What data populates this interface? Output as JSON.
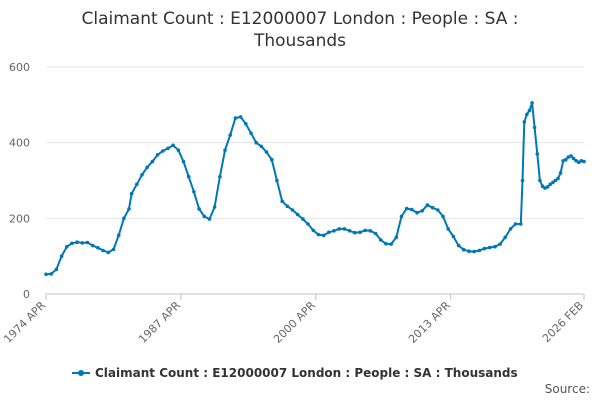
{
  "chart_data": {
    "type": "line",
    "title_line1": "Claimant Count : E12000007 London : People : SA :",
    "title_line2": "Thousands",
    "xlabel": "",
    "ylabel": "",
    "ylim": [
      0,
      600
    ],
    "y_ticks": [
      "0",
      "200",
      "400",
      "600"
    ],
    "x_range": [
      "1974 APR",
      "2026 FEB"
    ],
    "x_ticks": [
      "1974 APR",
      "1987 APR",
      "2000 APR",
      "2013 APR",
      "2026 FEB"
    ],
    "grid": "horizontal",
    "legend_position": "bottom",
    "series_color": "#0077b6",
    "series": [
      {
        "name": "Claimant Count : E12000007 London : People : SA : Thousands",
        "points": [
          [
            "1974-04",
            52
          ],
          [
            "1974-10",
            53
          ],
          [
            "1975-04",
            65
          ],
          [
            "1975-10",
            100
          ],
          [
            "1976-04",
            125
          ],
          [
            "1976-10",
            134
          ],
          [
            "1977-04",
            137
          ],
          [
            "1977-10",
            135
          ],
          [
            "1978-04",
            136
          ],
          [
            "1978-10",
            128
          ],
          [
            "1979-04",
            122
          ],
          [
            "1979-10",
            115
          ],
          [
            "1980-04",
            110
          ],
          [
            "1980-10",
            118
          ],
          [
            "1981-04",
            155
          ],
          [
            "1981-10",
            200
          ],
          [
            "1982-04",
            225
          ],
          [
            "1982-07",
            265
          ],
          [
            "1983-01",
            290
          ],
          [
            "1983-07",
            315
          ],
          [
            "1984-01",
            335
          ],
          [
            "1984-07",
            350
          ],
          [
            "1985-01",
            368
          ],
          [
            "1985-07",
            378
          ],
          [
            "1986-01",
            385
          ],
          [
            "1986-07",
            393
          ],
          [
            "1987-01",
            380
          ],
          [
            "1987-07",
            350
          ],
          [
            "1988-01",
            310
          ],
          [
            "1988-07",
            270
          ],
          [
            "1989-01",
            225
          ],
          [
            "1989-07",
            205
          ],
          [
            "1990-01",
            198
          ],
          [
            "1990-07",
            230
          ],
          [
            "1991-01",
            310
          ],
          [
            "1991-07",
            380
          ],
          [
            "1992-01",
            420
          ],
          [
            "1992-07",
            465
          ],
          [
            "1993-01",
            468
          ],
          [
            "1993-07",
            450
          ],
          [
            "1994-01",
            425
          ],
          [
            "1994-07",
            400
          ],
          [
            "1995-01",
            390
          ],
          [
            "1995-07",
            375
          ],
          [
            "1996-01",
            355
          ],
          [
            "1996-07",
            300
          ],
          [
            "1997-01",
            245
          ],
          [
            "1997-07",
            232
          ],
          [
            "1998-01",
            222
          ],
          [
            "1998-07",
            210
          ],
          [
            "1999-01",
            198
          ],
          [
            "1999-07",
            185
          ],
          [
            "2000-01",
            168
          ],
          [
            "2000-07",
            157
          ],
          [
            "2001-01",
            155
          ],
          [
            "2001-07",
            163
          ],
          [
            "2002-01",
            167
          ],
          [
            "2002-07",
            172
          ],
          [
            "2003-01",
            172
          ],
          [
            "2003-07",
            167
          ],
          [
            "2004-01",
            162
          ],
          [
            "2004-07",
            163
          ],
          [
            "2005-01",
            168
          ],
          [
            "2005-07",
            167
          ],
          [
            "2006-01",
            160
          ],
          [
            "2006-07",
            143
          ],
          [
            "2007-01",
            133
          ],
          [
            "2007-07",
            132
          ],
          [
            "2008-01",
            150
          ],
          [
            "2008-07",
            205
          ],
          [
            "2009-01",
            226
          ],
          [
            "2009-07",
            223
          ],
          [
            "2010-01",
            215
          ],
          [
            "2010-07",
            220
          ],
          [
            "2011-01",
            235
          ],
          [
            "2011-07",
            228
          ],
          [
            "2012-01",
            222
          ],
          [
            "2012-07",
            205
          ],
          [
            "2013-01",
            172
          ],
          [
            "2013-07",
            152
          ],
          [
            "2014-01",
            128
          ],
          [
            "2014-07",
            117
          ],
          [
            "2015-01",
            113
          ],
          [
            "2015-07",
            112
          ],
          [
            "2016-01",
            115
          ],
          [
            "2016-07",
            120
          ],
          [
            "2017-01",
            123
          ],
          [
            "2017-07",
            125
          ],
          [
            "2018-01",
            132
          ],
          [
            "2018-07",
            150
          ],
          [
            "2019-01",
            172
          ],
          [
            "2019-07",
            185
          ],
          [
            "2020-01",
            185
          ],
          [
            "2020-03",
            300
          ],
          [
            "2020-05",
            455
          ],
          [
            "2020-08",
            475
          ],
          [
            "2020-11",
            485
          ],
          [
            "2021-02",
            505
          ],
          [
            "2021-05",
            440
          ],
          [
            "2021-08",
            370
          ],
          [
            "2021-11",
            300
          ],
          [
            "2022-02",
            285
          ],
          [
            "2022-05",
            280
          ],
          [
            "2022-08",
            283
          ],
          [
            "2022-11",
            290
          ],
          [
            "2023-02",
            295
          ],
          [
            "2023-05",
            300
          ],
          [
            "2023-08",
            305
          ],
          [
            "2023-11",
            320
          ],
          [
            "2024-02",
            352
          ],
          [
            "2024-05",
            355
          ],
          [
            "2024-08",
            362
          ],
          [
            "2024-11",
            365
          ],
          [
            "2025-02",
            358
          ],
          [
            "2025-05",
            352
          ],
          [
            "2025-08",
            348
          ],
          [
            "2025-11",
            352
          ],
          [
            "2026-02",
            350
          ]
        ]
      }
    ],
    "credit": "Source: "
  }
}
